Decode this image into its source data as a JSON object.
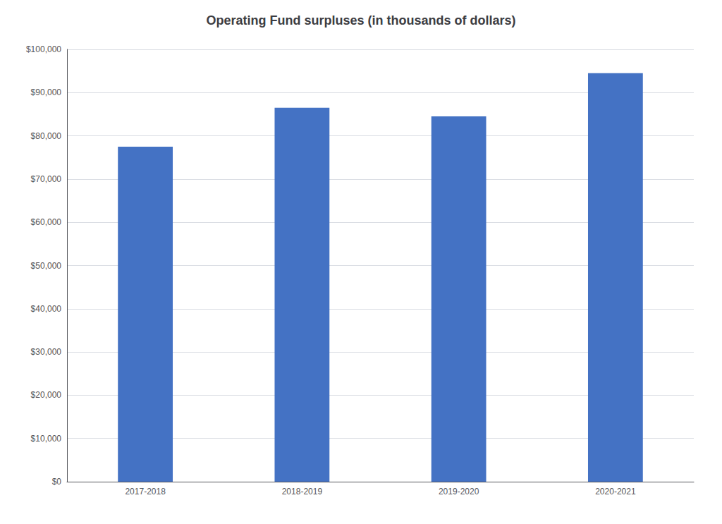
{
  "chart_data": {
    "type": "bar",
    "title": "Operating Fund surpluses (in thousands of dollars)",
    "categories": [
      "2017-2018",
      "2018-2019",
      "2019-2020",
      "2020-2021"
    ],
    "values": [
      77500,
      86500,
      84500,
      94500
    ],
    "color": "#4472C4",
    "ylim": [
      0,
      100000
    ],
    "yticks": [
      {
        "value": 0,
        "label": "$0"
      },
      {
        "value": 10000,
        "label": "$10,000"
      },
      {
        "value": 20000,
        "label": "$20,000"
      },
      {
        "value": 30000,
        "label": "$30,000"
      },
      {
        "value": 40000,
        "label": "$40,000"
      },
      {
        "value": 50000,
        "label": "$50,000"
      },
      {
        "value": 60000,
        "label": "$60,000"
      },
      {
        "value": 70000,
        "label": "$70,000"
      },
      {
        "value": 80000,
        "label": "$80,000"
      },
      {
        "value": 90000,
        "label": "$90,000"
      },
      {
        "value": 100000,
        "label": "$100,000"
      }
    ],
    "grid": true
  }
}
